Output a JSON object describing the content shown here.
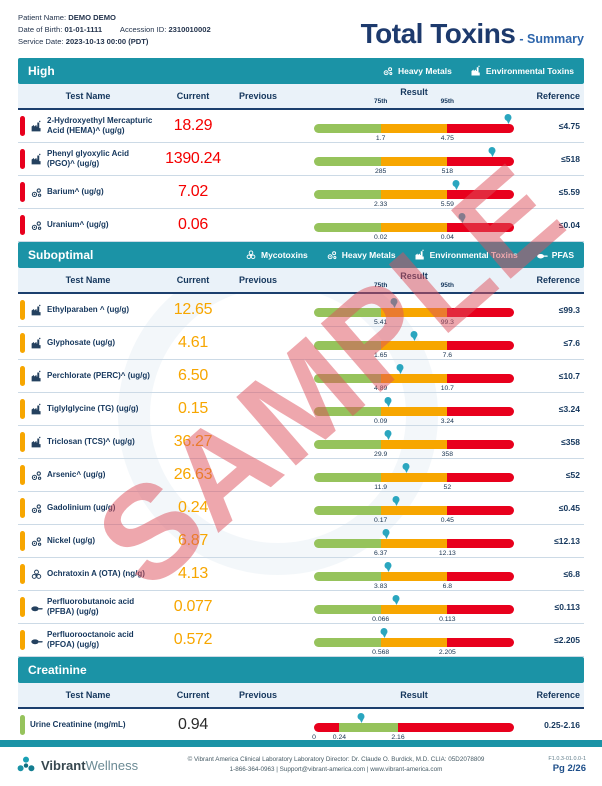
{
  "header": {
    "patient_name_label": "Patient Name:",
    "patient_name": "DEMO DEMO",
    "dob_label": "Date of Birth:",
    "dob": "01-01-1111",
    "accession_label": "Accession ID:",
    "accession": "2310010002",
    "service_date_label": "Service Date:",
    "service_date": "2023-10-13 00:00 (PDT)",
    "title": "Total Toxins",
    "subtitle": "- Summary"
  },
  "watermark": "SAMPLE",
  "columns": {
    "test_name": "Test Name",
    "current": "Current",
    "previous": "Previous",
    "result": "Result",
    "p75": "75th",
    "p95": "95th",
    "reference": "Reference"
  },
  "colors": {
    "teal": "#1b93a6",
    "green": "#96c35c",
    "orange": "#f7a600",
    "red": "#e8001d",
    "marker": "#2aa6bf"
  },
  "sections": [
    {
      "id": "high",
      "title": "High",
      "pill_color": "red",
      "value_color": "#f40000",
      "show_percentiles": true,
      "badges": [
        {
          "icon": "heavy-metals",
          "label": "Heavy Metals"
        },
        {
          "icon": "environmental-toxins",
          "label": "Environmental Toxins"
        }
      ],
      "rows": [
        {
          "icon": "environmental-toxins",
          "name": "2-Hydroxyethyl Mercapturic Acid (HEMA)^ (ug/g)",
          "current": "18.29",
          "previous": "",
          "bar": {
            "type": "standard",
            "p75": "1.7",
            "p95": "4.75",
            "marker": 0.97
          },
          "reference": "≤4.75"
        },
        {
          "icon": "environmental-toxins",
          "name": "Phenyl glyoxylic Acid (PGO)^ (ug/g)",
          "current": "1390.24",
          "previous": "",
          "bar": {
            "type": "standard",
            "p75": "285",
            "p95": "518",
            "marker": 0.89
          },
          "reference": "≤518"
        },
        {
          "icon": "heavy-metals",
          "name": "Barium^ (ug/g)",
          "current": "7.02",
          "previous": "",
          "bar": {
            "type": "standard",
            "p75": "2.33",
            "p95": "5.59",
            "marker": 0.71
          },
          "reference": "≤5.59"
        },
        {
          "icon": "heavy-metals",
          "name": "Uranium^ (ug/g)",
          "current": "0.06",
          "previous": "",
          "bar": {
            "type": "standard",
            "p75": "0.02",
            "p95": "0.04",
            "marker": 0.74
          },
          "reference": "≤0.04"
        }
      ]
    },
    {
      "id": "suboptimal",
      "title": "Suboptimal",
      "pill_color": "orange",
      "value_color": "#f7a600",
      "show_percentiles": true,
      "badges": [
        {
          "icon": "mycotoxins",
          "label": "Mycotoxins"
        },
        {
          "icon": "heavy-metals",
          "label": "Heavy Metals"
        },
        {
          "icon": "environmental-toxins",
          "label": "Environmental Toxins"
        },
        {
          "icon": "pfas",
          "label": "PFAS"
        }
      ],
      "rows": [
        {
          "icon": "environmental-toxins",
          "name": "Ethylparaben ^ (ug/g)",
          "current": "12.65",
          "previous": "",
          "bar": {
            "type": "standard",
            "p75": "5.41",
            "p95": "99.3",
            "marker": 0.4
          },
          "reference": "≤99.3"
        },
        {
          "icon": "environmental-toxins",
          "name": "Glyphosate (ug/g)",
          "current": "4.61",
          "previous": "",
          "bar": {
            "type": "standard",
            "p75": "1.65",
            "p95": "7.6",
            "marker": 0.5
          },
          "reference": "≤7.6"
        },
        {
          "icon": "environmental-toxins",
          "name": "Perchlorate (PERC)^ (ug/g)",
          "current": "6.50",
          "previous": "",
          "bar": {
            "type": "standard",
            "p75": "4.89",
            "p95": "10.7",
            "marker": 0.43
          },
          "reference": "≤10.7"
        },
        {
          "icon": "environmental-toxins",
          "name": "Tiglylglycine (TG) (ug/g)",
          "current": "0.15",
          "previous": "",
          "bar": {
            "type": "standard",
            "p75": "0.09",
            "p95": "3.24",
            "marker": 0.37
          },
          "reference": "≤3.24"
        },
        {
          "icon": "environmental-toxins",
          "name": "Triclosan (TCS)^ (ug/g)",
          "current": "36.27",
          "previous": "",
          "bar": {
            "type": "standard",
            "p75": "29.9",
            "p95": "358",
            "marker": 0.37
          },
          "reference": "≤358"
        },
        {
          "icon": "heavy-metals",
          "name": "Arsenic^ (ug/g)",
          "current": "26.63",
          "previous": "",
          "bar": {
            "type": "standard",
            "p75": "11.9",
            "p95": "52",
            "marker": 0.46
          },
          "reference": "≤52"
        },
        {
          "icon": "heavy-metals",
          "name": "Gadolinium (ug/g)",
          "current": "0.24",
          "previous": "",
          "bar": {
            "type": "standard",
            "p75": "0.17",
            "p95": "0.45",
            "marker": 0.41
          },
          "reference": "≤0.45"
        },
        {
          "icon": "heavy-metals",
          "name": "Nickel (ug/g)",
          "current": "6.87",
          "previous": "",
          "bar": {
            "type": "standard",
            "p75": "6.37",
            "p95": "12.13",
            "marker": 0.36
          },
          "reference": "≤12.13"
        },
        {
          "icon": "mycotoxins",
          "name": "Ochratoxin A (OTA) (ng/g)",
          "current": "4.13",
          "previous": "",
          "bar": {
            "type": "standard",
            "p75": "3.83",
            "p95": "6.8",
            "marker": 0.37
          },
          "reference": "≤6.8"
        },
        {
          "icon": "pfas",
          "name": "Perfluorobutanoic acid (PFBA) (ug/g)",
          "current": "0.077",
          "previous": "",
          "bar": {
            "type": "standard",
            "p75": "0.066",
            "p95": "0.113",
            "marker": 0.41
          },
          "reference": "≤0.113"
        },
        {
          "icon": "pfas",
          "name": "Perfluorooctanoic acid (PFOA) (ug/g)",
          "current": "0.572",
          "previous": "",
          "bar": {
            "type": "standard",
            "p75": "0.568",
            "p95": "2.205",
            "marker": 0.35
          },
          "reference": "≤2.205"
        }
      ]
    },
    {
      "id": "creatinine",
      "title": "Creatinine",
      "pill_color": "green",
      "value_color": "#2b2b2b",
      "show_percentiles": false,
      "badges": [],
      "rows": [
        {
          "icon": null,
          "name": "Urine Creatinine (mg/mL)",
          "current": "0.94",
          "previous": "",
          "bar": {
            "type": "custom",
            "segments": [
              {
                "color": "red",
                "frac": 0.127
              },
              {
                "color": "green",
                "frac": 0.293
              },
              {
                "color": "red",
                "frac": 0.58
              }
            ],
            "ticks": [
              {
                "label": "0",
                "frac": 0.0
              },
              {
                "label": "0.24",
                "frac": 0.127
              },
              {
                "label": "2.16",
                "frac": 0.42
              }
            ],
            "marker": 0.235
          },
          "reference": "0.25-2.16"
        }
      ]
    }
  ],
  "footer": {
    "logo_bold": "Vibrant",
    "logo_light": "Wellness",
    "line1": "© Vibrant America Clinical Laboratory Laboratory Director: Dr. Claude O. Burdick, M.D. CLIA: 05D2078809",
    "line2": "1-866-364-0963 | Support@vibrant-america.com | www.vibrant-america.com",
    "version": "F1.0.3-01.0.0-1",
    "page": "Pg 2/26"
  }
}
